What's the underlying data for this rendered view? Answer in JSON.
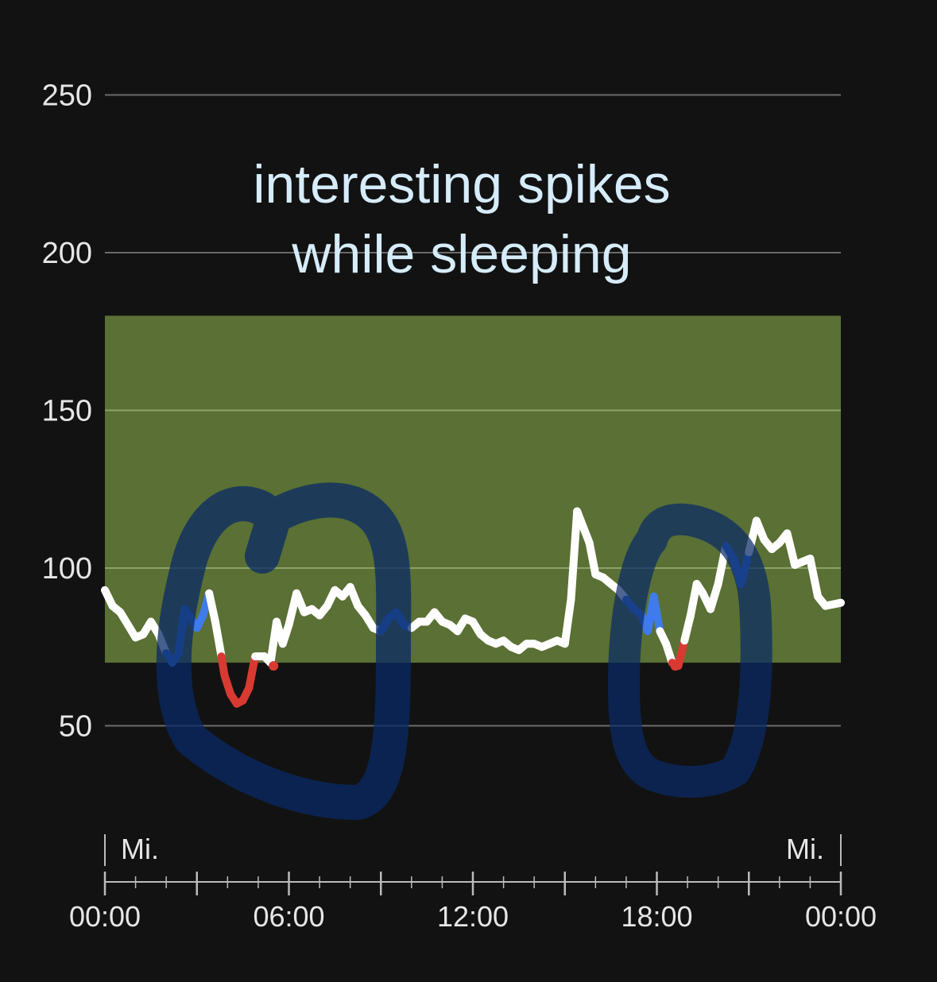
{
  "chart_data": {
    "type": "line",
    "title": "",
    "xlabel": "",
    "ylabel": "",
    "ylim": [
      0,
      250
    ],
    "y_ticks": [
      50,
      100,
      150,
      200,
      250
    ],
    "x_ticks": [
      "00:00",
      "06:00",
      "12:00",
      "18:00",
      "00:00"
    ],
    "day_labels": [
      "Mi.",
      "Mi."
    ],
    "target_range": [
      70,
      180
    ],
    "annotation": [
      "interesting spikes",
      "while sleeping"
    ],
    "colors": {
      "background": "#121212",
      "target_band": "#5a7034",
      "line_in_range": "#ffffff",
      "line_low": "#d83a32",
      "line_elevated": "#3f7bea",
      "annotation_text": "#d6ecfb",
      "annotation_marker": "#0a2a66"
    },
    "series": [
      {
        "values": [
          [
            0,
            93
          ],
          [
            0.25,
            88
          ],
          [
            0.5,
            86
          ],
          [
            0.75,
            82
          ],
          [
            1.0,
            78
          ],
          [
            1.25,
            79
          ],
          [
            1.5,
            83
          ],
          [
            1.75,
            79
          ],
          [
            2.0,
            73
          ],
          [
            2.2,
            70
          ],
          [
            2.4,
            73
          ],
          [
            2.6,
            87
          ],
          [
            2.8,
            84
          ],
          [
            3.0,
            81
          ],
          [
            3.2,
            85
          ],
          [
            3.4,
            92
          ],
          [
            3.6,
            83
          ],
          [
            3.8,
            72
          ],
          [
            3.9,
            66
          ],
          [
            4.1,
            60
          ],
          [
            4.3,
            57
          ],
          [
            4.5,
            58
          ],
          [
            4.7,
            62
          ],
          [
            4.9,
            72
          ],
          [
            5.2,
            72
          ],
          [
            5.4,
            70
          ],
          [
            5.6,
            83
          ],
          [
            5.8,
            76
          ],
          [
            6.0,
            82
          ],
          [
            6.25,
            92
          ],
          [
            6.5,
            86
          ],
          [
            6.75,
            87
          ],
          [
            7.0,
            85
          ],
          [
            7.25,
            88
          ],
          [
            7.5,
            93
          ],
          [
            7.75,
            91
          ],
          [
            8.0,
            94
          ],
          [
            8.25,
            88
          ],
          [
            8.5,
            85
          ],
          [
            8.75,
            81
          ],
          [
            9.0,
            80
          ],
          [
            9.25,
            84
          ],
          [
            9.5,
            86
          ],
          [
            9.75,
            82
          ],
          [
            10.0,
            81
          ],
          [
            10.25,
            83
          ],
          [
            10.5,
            83
          ],
          [
            10.75,
            86
          ],
          [
            11.0,
            83
          ],
          [
            11.25,
            82
          ],
          [
            11.5,
            80
          ],
          [
            11.75,
            84
          ],
          [
            12.0,
            83
          ],
          [
            12.25,
            79
          ],
          [
            12.5,
            77
          ],
          [
            12.75,
            76
          ],
          [
            13.0,
            77
          ],
          [
            13.25,
            75
          ],
          [
            13.5,
            74
          ],
          [
            13.75,
            76
          ],
          [
            14.0,
            76
          ],
          [
            14.25,
            75
          ],
          [
            14.5,
            76
          ],
          [
            14.75,
            77
          ],
          [
            15.0,
            76
          ],
          [
            15.2,
            90
          ],
          [
            15.4,
            118
          ],
          [
            15.6,
            113
          ],
          [
            15.8,
            108
          ],
          [
            16.0,
            98
          ],
          [
            16.25,
            97
          ],
          [
            16.5,
            95
          ],
          [
            16.75,
            93
          ],
          [
            17.0,
            90
          ],
          [
            17.25,
            87
          ],
          [
            17.5,
            85
          ],
          [
            17.7,
            80
          ],
          [
            17.9,
            91
          ],
          [
            18.1,
            80
          ],
          [
            18.3,
            76
          ],
          [
            18.5,
            70
          ],
          [
            18.7,
            69
          ],
          [
            18.9,
            77
          ],
          [
            19.1,
            85
          ],
          [
            19.3,
            95
          ],
          [
            19.5,
            92
          ],
          [
            19.75,
            87
          ],
          [
            20.0,
            95
          ],
          [
            20.25,
            107
          ],
          [
            20.5,
            103
          ],
          [
            20.75,
            95
          ],
          [
            21.0,
            105
          ],
          [
            21.25,
            115
          ],
          [
            21.5,
            109
          ],
          [
            21.75,
            106
          ],
          [
            22.0,
            108
          ],
          [
            22.25,
            111
          ],
          [
            22.5,
            101
          ],
          [
            22.75,
            102
          ],
          [
            23.0,
            103
          ],
          [
            23.25,
            91
          ],
          [
            23.5,
            88
          ],
          [
            24.0,
            89
          ]
        ]
      }
    ]
  }
}
